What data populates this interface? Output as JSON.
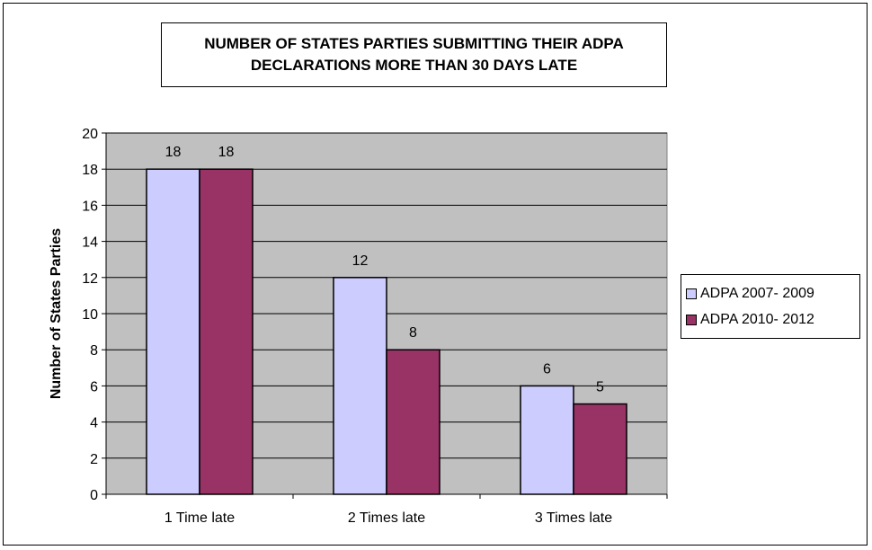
{
  "chart_data": {
    "type": "bar",
    "title": "NUMBER OF STATES PARTIES SUBMITTING THEIR ADPA\nDECLARATIONS MORE THAN 30 DAYS LATE",
    "xlabel": "",
    "ylabel": "Number of States Parties",
    "categories": [
      "1 Time late",
      "2 Times late",
      "3 Times late"
    ],
    "series": [
      {
        "name": "ADPA 2007- 2009",
        "values": [
          18,
          12,
          6
        ],
        "color": "#ccccff"
      },
      {
        "name": "ADPA 2010- 2012",
        "values": [
          18,
          8,
          5
        ],
        "color": "#993366"
      }
    ],
    "ylim": [
      0,
      20
    ],
    "yticks": [
      0,
      2,
      4,
      6,
      8,
      10,
      12,
      14,
      16,
      18,
      20
    ],
    "grid": true,
    "plot_background": "#c0c0c0",
    "legend_position": "right"
  }
}
